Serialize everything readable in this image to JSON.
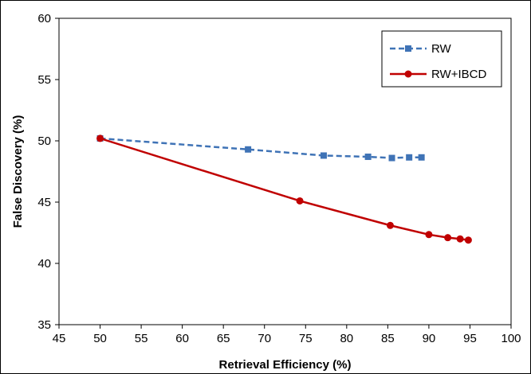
{
  "chart_data": {
    "type": "line",
    "title": "",
    "xlabel": "Retrieval Efficiency (%)",
    "ylabel": "False Discovery (%)",
    "xlim": [
      45,
      100
    ],
    "ylim": [
      35,
      60
    ],
    "xticks": [
      45,
      50,
      55,
      60,
      65,
      70,
      75,
      80,
      85,
      90,
      95,
      100
    ],
    "yticks": [
      35,
      40,
      45,
      50,
      55,
      60
    ],
    "grid": false,
    "legend_position": "top-right",
    "series": [
      {
        "name": "RW",
        "color": "#3f73b6",
        "line_style": "dashed",
        "marker": "square",
        "x": [
          50,
          68,
          77.2,
          82.6,
          85.5,
          87.6,
          89.1
        ],
        "y": [
          50.2,
          49.3,
          48.8,
          48.7,
          48.6,
          48.65,
          48.65
        ]
      },
      {
        "name": "RW+IBCD",
        "color": "#c00000",
        "line_style": "solid",
        "marker": "circle",
        "x": [
          50,
          74.3,
          85.3,
          90,
          92.3,
          93.8,
          94.8
        ],
        "y": [
          50.2,
          45.1,
          43.1,
          42.35,
          42.1,
          42.0,
          41.9
        ]
      }
    ]
  }
}
